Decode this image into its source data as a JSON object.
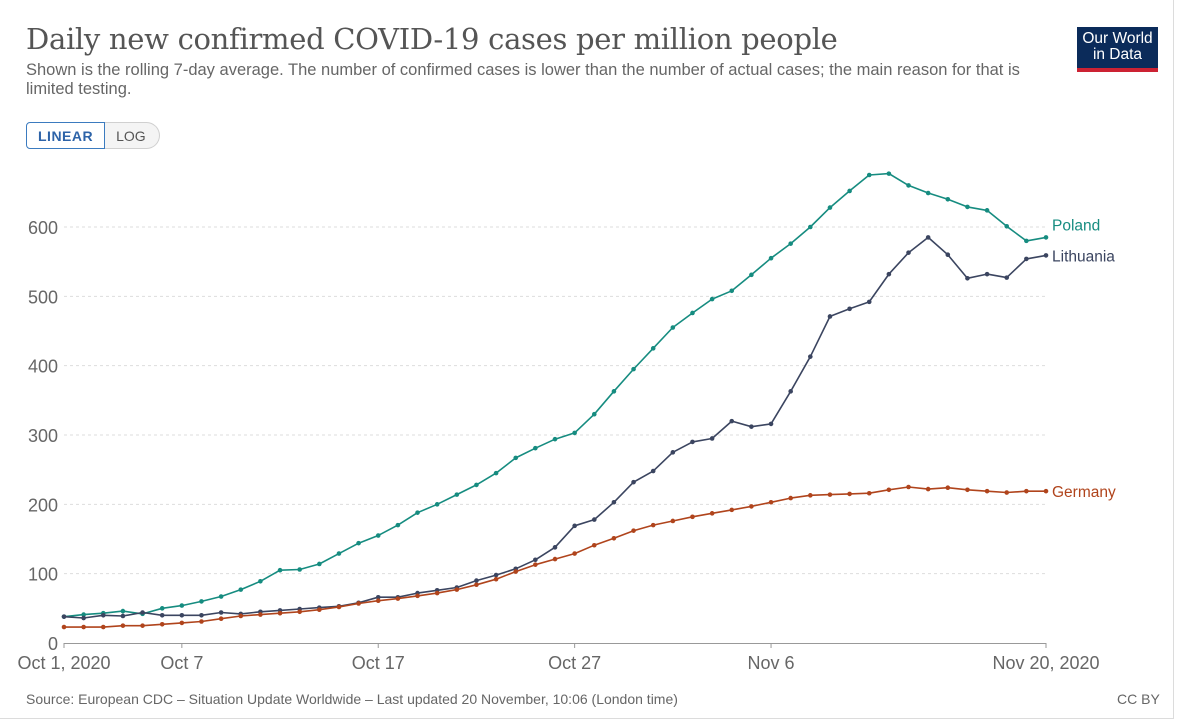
{
  "header": {
    "title": "Daily new confirmed COVID-19 cases per million people",
    "subtitle": "Shown is the rolling 7-day average. The number of confirmed cases is lower than the number of actual cases; the main reason for that is limited testing.",
    "logo_line1": "Our World",
    "logo_line2": "in Data"
  },
  "scale_toggle": {
    "linear_label": "LINEAR",
    "log_label": "LOG",
    "selected": "LINEAR"
  },
  "footer": {
    "source": "Source: European CDC – Situation Update Worldwide – Last updated 20 November, 10:06 (London time)",
    "license": "CC BY"
  },
  "colors": {
    "poland": "#168c80",
    "lithuania": "#3b4560",
    "germany": "#b0441c",
    "grid": "#dddddd",
    "axis_text": "#666666"
  },
  "chart_data": {
    "type": "line",
    "title": "Daily new confirmed COVID-19 cases per million people",
    "xlabel": "",
    "ylabel": "",
    "ylim": [
      0,
      700
    ],
    "x_start": "Oct 1, 2020",
    "x_end": "Nov 20, 2020",
    "num_days": 51,
    "grid": true,
    "xticks": [
      {
        "day": 0,
        "label": "Oct 1, 2020"
      },
      {
        "day": 6,
        "label": "Oct 7"
      },
      {
        "day": 16,
        "label": "Oct 17"
      },
      {
        "day": 26,
        "label": "Oct 27"
      },
      {
        "day": 36,
        "label": "Nov 6"
      },
      {
        "day": 50,
        "label": "Nov 20, 2020"
      }
    ],
    "yticks": [
      0,
      100,
      200,
      300,
      400,
      500,
      600
    ],
    "series": [
      {
        "name": "Poland",
        "color": "#168c80",
        "values": [
          38,
          41,
          43,
          46,
          42,
          50,
          54,
          60,
          67,
          77,
          89,
          105,
          106,
          114,
          129,
          144,
          155,
          170,
          188,
          200,
          214,
          228,
          245,
          267,
          281,
          294,
          303,
          330,
          363,
          395,
          425,
          455,
          476,
          496,
          508,
          531,
          555,
          576,
          600,
          628,
          652,
          675,
          677,
          660,
          649,
          640,
          629,
          624,
          601,
          580,
          585
        ]
      },
      {
        "name": "Lithuania",
        "color": "#3b4560",
        "values": [
          38,
          36,
          40,
          39,
          44,
          40,
          40,
          40,
          44,
          42,
          45,
          47,
          49,
          51,
          53,
          58,
          66,
          66,
          72,
          76,
          80,
          90,
          98,
          107,
          120,
          138,
          169,
          178,
          203,
          232,
          248,
          275,
          290,
          295,
          320,
          312,
          316,
          363,
          413,
          471,
          482,
          492,
          532,
          563,
          585,
          560,
          526,
          532,
          527,
          554,
          559
        ]
      },
      {
        "name": "Germany",
        "color": "#b0441c",
        "values": [
          23,
          23,
          23,
          25,
          25,
          27,
          29,
          31,
          35,
          39,
          41,
          43,
          45,
          48,
          52,
          57,
          61,
          64,
          68,
          72,
          77,
          84,
          92,
          103,
          113,
          121,
          129,
          141,
          151,
          162,
          170,
          176,
          182,
          187,
          192,
          197,
          203,
          209,
          213,
          214,
          215,
          216,
          221,
          225,
          222,
          224,
          221,
          219,
          217,
          219,
          219
        ]
      }
    ]
  }
}
